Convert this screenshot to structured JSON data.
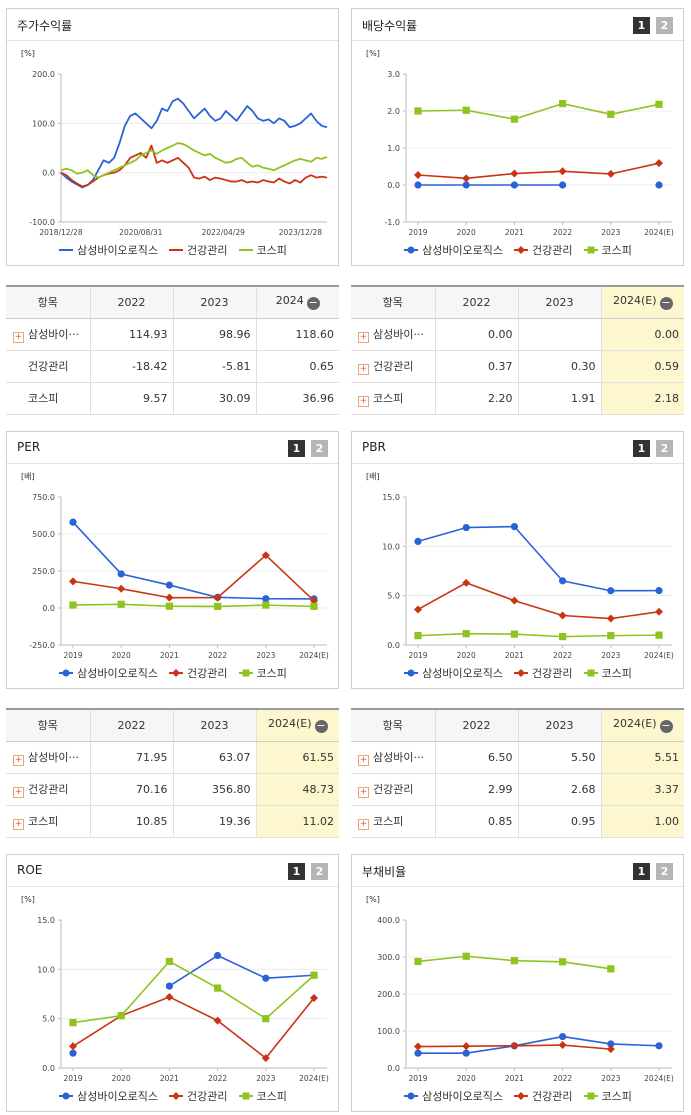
{
  "colors": {
    "samsung": "#2a62d8",
    "health": "#c83414",
    "kospi": "#8dc41f"
  },
  "legend": [
    "삼성바이오로직스",
    "건강관리",
    "코스피"
  ],
  "panels": [
    {
      "id": "stock_return",
      "title": "주가수익률",
      "buttons": [],
      "unit": "[%]",
      "chart_data": {
        "type": "line",
        "ylim": [
          -100,
          200
        ],
        "yticks": [
          "200.0",
          "100.0",
          "0.0",
          "-100.0"
        ],
        "xlim": [
          0,
          100
        ],
        "xticks": [
          {
            "pos": 0,
            "label": "2018/12/28"
          },
          {
            "pos": 30,
            "label": "2020/08/31"
          },
          {
            "pos": 61,
            "label": "2022/04/29"
          },
          {
            "pos": 90,
            "label": "2023/12/28"
          }
        ],
        "series": [
          {
            "name": "삼성바이오로직스",
            "marker": "none",
            "x": [
              0,
              2,
              4,
              6,
              8,
              10,
              12,
              14,
              16,
              18,
              20,
              22,
              24,
              26,
              28,
              30,
              32,
              34,
              36,
              38,
              40,
              42,
              44,
              46,
              48,
              50,
              52,
              54,
              56,
              58,
              60,
              62,
              64,
              66,
              68,
              70,
              72,
              74,
              76,
              78,
              80,
              82,
              84,
              86,
              88,
              90,
              92,
              94,
              96,
              98,
              100
            ],
            "values": [
              0,
              -10,
              -18,
              -24,
              -30,
              -25,
              -15,
              5,
              25,
              20,
              30,
              60,
              95,
              115,
              120,
              110,
              100,
              90,
              105,
              130,
              125,
              145,
              150,
              140,
              125,
              110,
              120,
              130,
              115,
              105,
              110,
              125,
              115,
              105,
              120,
              135,
              125,
              110,
              105,
              108,
              100,
              110,
              105,
              92,
              95,
              100,
              110,
              120,
              105,
              95,
              92
            ]
          },
          {
            "name": "건강관리",
            "marker": "none",
            "x": [
              0,
              2,
              4,
              6,
              8,
              10,
              12,
              14,
              16,
              18,
              20,
              22,
              24,
              26,
              28,
              30,
              32,
              34,
              36,
              38,
              40,
              42,
              44,
              46,
              48,
              50,
              52,
              54,
              56,
              58,
              60,
              62,
              64,
              66,
              68,
              70,
              72,
              74,
              76,
              78,
              80,
              82,
              84,
              86,
              88,
              90,
              92,
              94,
              96,
              98,
              100
            ],
            "values": [
              0,
              -5,
              -15,
              -22,
              -28,
              -25,
              -18,
              -10,
              -5,
              -2,
              0,
              5,
              15,
              30,
              35,
              40,
              30,
              55,
              20,
              25,
              20,
              25,
              30,
              20,
              10,
              -10,
              -12,
              -8,
              -15,
              -10,
              -12,
              -15,
              -18,
              -18,
              -15,
              -20,
              -18,
              -20,
              -15,
              -18,
              -20,
              -12,
              -18,
              -22,
              -15,
              -20,
              -10,
              -5,
              -10,
              -8,
              -10
            ]
          },
          {
            "name": "코스피",
            "marker": "none",
            "x": [
              0,
              2,
              4,
              6,
              8,
              10,
              12,
              14,
              16,
              18,
              20,
              22,
              24,
              26,
              28,
              30,
              32,
              34,
              36,
              38,
              40,
              42,
              44,
              46,
              48,
              50,
              52,
              54,
              56,
              58,
              60,
              62,
              64,
              66,
              68,
              70,
              72,
              74,
              76,
              78,
              80,
              82,
              84,
              86,
              88,
              90,
              92,
              94,
              96,
              98,
              100
            ],
            "values": [
              5,
              8,
              5,
              -2,
              0,
              5,
              -5,
              -10,
              -5,
              0,
              5,
              10,
              15,
              20,
              25,
              35,
              40,
              45,
              38,
              45,
              50,
              55,
              60,
              58,
              52,
              45,
              40,
              35,
              38,
              30,
              25,
              20,
              22,
              28,
              30,
              20,
              12,
              15,
              10,
              8,
              5,
              10,
              15,
              20,
              25,
              28,
              25,
              22,
              30,
              28,
              32
            ]
          }
        ]
      },
      "table": {
        "headers": [
          "항목",
          "2022",
          "2023",
          "2024"
        ],
        "header_icon": "minus-icon",
        "highlight_last": false,
        "rows": [
          {
            "label": "삼성바이···",
            "icon": true,
            "cells": [
              "114.93",
              "98.96",
              "118.60"
            ]
          },
          {
            "label": "건강관리",
            "icon": false,
            "cells": [
              "-18.42",
              "-5.81",
              "0.65"
            ]
          },
          {
            "label": "코스피",
            "icon": false,
            "cells": [
              "9.57",
              "30.09",
              "36.96"
            ]
          }
        ]
      }
    },
    {
      "id": "dividend",
      "title": "배당수익률",
      "buttons": [
        "1",
        "2"
      ],
      "unit": "[%]",
      "chart_data": {
        "type": "line",
        "ylim": [
          -1,
          3
        ],
        "yticks": [
          "3.0",
          "2.0",
          "1.0",
          "0.0",
          "-1.0"
        ],
        "categories": [
          "2019",
          "2020",
          "2021",
          "2022",
          "2023",
          "2024(E)"
        ],
        "series": [
          {
            "name": "삼성바이오로직스",
            "marker": "circle",
            "values": [
              0.0,
              0.0,
              0.0,
              0.0,
              null,
              0.0
            ]
          },
          {
            "name": "건강관리",
            "marker": "diamond",
            "values": [
              0.27,
              0.18,
              0.31,
              0.37,
              0.3,
              0.59
            ]
          },
          {
            "name": "코스피",
            "marker": "square",
            "values": [
              2.0,
              2.02,
              1.78,
              2.2,
              1.91,
              2.18
            ]
          }
        ]
      },
      "table": {
        "headers": [
          "항목",
          "2022",
          "2023",
          "2024(E)"
        ],
        "header_icon": "minus-icon",
        "highlight_last": true,
        "rows": [
          {
            "label": "삼성바이···",
            "icon": true,
            "cells": [
              "0.00",
              "",
              "0.00"
            ]
          },
          {
            "label": "건강관리",
            "icon": true,
            "cells": [
              "0.37",
              "0.30",
              "0.59"
            ]
          },
          {
            "label": "코스피",
            "icon": true,
            "cells": [
              "2.20",
              "1.91",
              "2.18"
            ]
          }
        ]
      }
    },
    {
      "id": "per",
      "title": "PER",
      "buttons": [
        "1",
        "2"
      ],
      "unit": "[배]",
      "chart_data": {
        "type": "line",
        "ylim": [
          -250,
          750
        ],
        "yticks": [
          "750.0",
          "500.0",
          "250.0",
          "0.0",
          "-250.0"
        ],
        "categories": [
          "2019",
          "2020",
          "2021",
          "2022",
          "2023",
          "2024(E)"
        ],
        "series": [
          {
            "name": "삼성바이오로직스",
            "marker": "circle",
            "values": [
              580,
              230,
              155,
              71.95,
              63.07,
              61.55
            ]
          },
          {
            "name": "건강관리",
            "marker": "diamond",
            "values": [
              180,
              130,
              70,
              70.16,
              356.8,
              48.73
            ]
          },
          {
            "name": "코스피",
            "marker": "square",
            "values": [
              20,
              25,
              12,
              10.85,
              19.36,
              11.02
            ]
          }
        ]
      },
      "table": {
        "headers": [
          "항목",
          "2022",
          "2023",
          "2024(E)"
        ],
        "header_icon": "minus-icon",
        "highlight_last": true,
        "rows": [
          {
            "label": "삼성바이···",
            "icon": true,
            "cells": [
              "71.95",
              "63.07",
              "61.55"
            ]
          },
          {
            "label": "건강관리",
            "icon": true,
            "cells": [
              "70.16",
              "356.80",
              "48.73"
            ]
          },
          {
            "label": "코스피",
            "icon": true,
            "cells": [
              "10.85",
              "19.36",
              "11.02"
            ]
          }
        ]
      }
    },
    {
      "id": "pbr",
      "title": "PBR",
      "buttons": [
        "1",
        "2"
      ],
      "unit": "[배]",
      "chart_data": {
        "type": "line",
        "ylim": [
          0,
          15
        ],
        "yticks": [
          "15.0",
          "10.0",
          "5.0",
          "0.0"
        ],
        "categories": [
          "2019",
          "2020",
          "2021",
          "2022",
          "2023",
          "2024(E)"
        ],
        "series": [
          {
            "name": "삼성바이오로직스",
            "marker": "circle",
            "values": [
              10.5,
              11.9,
              12.0,
              6.5,
              5.5,
              5.51
            ]
          },
          {
            "name": "건강관리",
            "marker": "diamond",
            "values": [
              3.6,
              6.3,
              4.5,
              2.99,
              2.68,
              3.37
            ]
          },
          {
            "name": "코스피",
            "marker": "square",
            "values": [
              0.95,
              1.15,
              1.1,
              0.85,
              0.95,
              1.0
            ]
          }
        ]
      },
      "table": {
        "headers": [
          "항목",
          "2022",
          "2023",
          "2024(E)"
        ],
        "header_icon": "minus-icon",
        "highlight_last": true,
        "rows": [
          {
            "label": "삼성바이···",
            "icon": true,
            "cells": [
              "6.50",
              "5.50",
              "5.51"
            ]
          },
          {
            "label": "건강관리",
            "icon": true,
            "cells": [
              "2.99",
              "2.68",
              "3.37"
            ]
          },
          {
            "label": "코스피",
            "icon": true,
            "cells": [
              "0.85",
              "0.95",
              "1.00"
            ]
          }
        ]
      }
    },
    {
      "id": "roe",
      "title": "ROE",
      "buttons": [
        "1",
        "2"
      ],
      "unit": "[%]",
      "chart_data": {
        "type": "line",
        "ylim": [
          0,
          15
        ],
        "yticks": [
          "15.0",
          "10.0",
          "5.0",
          "0.0"
        ],
        "categories": [
          "2019",
          "2020",
          "2021",
          "2022",
          "2023",
          "2024(E)"
        ],
        "series": [
          {
            "name": "삼성바이오로직스",
            "marker": "circle",
            "values": [
              1.5,
              null,
              8.3,
              11.4,
              9.1,
              9.4
            ]
          },
          {
            "name": "건강관리",
            "marker": "diamond",
            "values": [
              2.2,
              5.3,
              7.2,
              4.8,
              1.0,
              7.1
            ]
          },
          {
            "name": "코스피",
            "marker": "square",
            "values": [
              4.6,
              5.3,
              10.8,
              8.1,
              5.0,
              9.4
            ]
          }
        ]
      }
    },
    {
      "id": "debt",
      "title": "부채비율",
      "buttons": [
        "1",
        "2"
      ],
      "unit": "[%]",
      "chart_data": {
        "type": "line",
        "ylim": [
          0,
          400
        ],
        "yticks": [
          "400.0",
          "300.0",
          "200.0",
          "100.0",
          "0.0"
        ],
        "categories": [
          "2019",
          "2020",
          "2021",
          "2022",
          "2023",
          "2024(E)"
        ],
        "series": [
          {
            "name": "삼성바이오로직스",
            "marker": "circle",
            "values": [
              40,
              40,
              60,
              85,
              65,
              60
            ]
          },
          {
            "name": "건강관리",
            "marker": "diamond",
            "values": [
              58,
              59,
              60,
              62,
              51,
              null
            ]
          },
          {
            "name": "코스피",
            "marker": "square",
            "values": [
              288,
              302,
              290,
              287,
              268,
              null
            ]
          }
        ]
      }
    }
  ]
}
